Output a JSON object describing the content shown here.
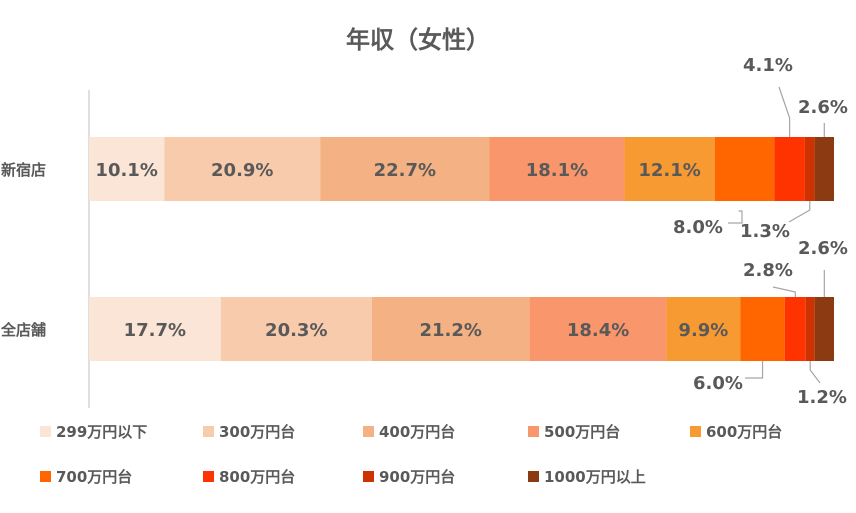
{
  "chart_data": {
    "type": "bar",
    "orientation": "horizontal",
    "stacked": "100%",
    "title": "年収（女性）",
    "categories": [
      "新宿店",
      "全店舗"
    ],
    "series": [
      {
        "name": "299万円以下",
        "color": "#FBE5D6",
        "values": [
          10.1,
          17.7
        ]
      },
      {
        "name": "300万円台",
        "color": "#F8CBAD",
        "values": [
          20.9,
          20.3
        ]
      },
      {
        "name": "400万円台",
        "color": "#F4B183",
        "values": [
          22.7,
          21.2
        ]
      },
      {
        "name": "500万円台",
        "color": "#F9966B",
        "values": [
          18.1,
          18.4
        ]
      },
      {
        "name": "600万円台",
        "color": "#F79A32",
        "values": [
          12.1,
          9.9
        ]
      },
      {
        "name": "700万円台",
        "color": "#FF6600",
        "values": [
          8.0,
          6.0
        ]
      },
      {
        "name": "800万円台",
        "color": "#FF3300",
        "values": [
          4.1,
          2.8
        ]
      },
      {
        "name": "900万円台",
        "color": "#CC3300",
        "values": [
          1.3,
          1.2
        ]
      },
      {
        "name": "1000万円以上",
        "color": "#8B3A12",
        "values": [
          2.6,
          2.6
        ]
      }
    ],
    "value_labels": [
      [
        "10.1%",
        "20.9%",
        "22.7%",
        "18.1%",
        "12.1%",
        "8.0%",
        "4.1%",
        "1.3%",
        "2.6%"
      ],
      [
        "17.7%",
        "20.3%",
        "21.2%",
        "18.4%",
        "9.9%",
        "6.0%",
        "2.8%",
        "1.2%",
        "2.6%"
      ]
    ],
    "legend_position": "bottom",
    "grid": false
  }
}
